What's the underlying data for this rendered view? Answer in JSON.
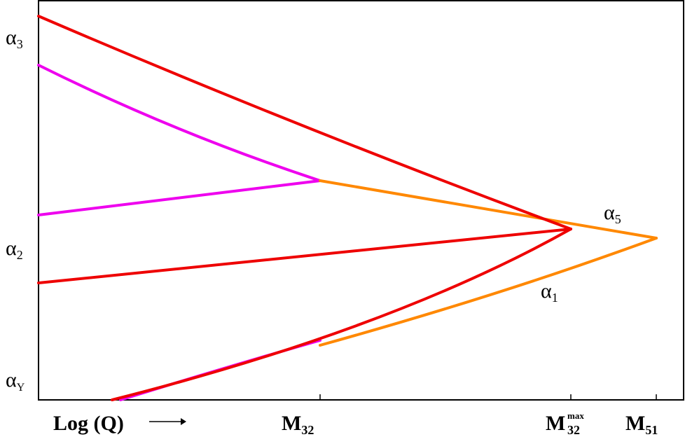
{
  "diagram": {
    "x_axis_label": "Log (Q)",
    "x_axis_arrow": "arrow-right-icon",
    "x_ticks": [
      {
        "base": "M",
        "sub": "32",
        "sup": ""
      },
      {
        "base": "M",
        "sub": "32",
        "sup": "max"
      },
      {
        "base": "M",
        "sub": "51",
        "sup": ""
      }
    ],
    "y_labels": [
      {
        "base": "α",
        "sub": "3"
      },
      {
        "base": "α",
        "sub": "2"
      },
      {
        "base": "α",
        "sub": "Y"
      }
    ],
    "curve_labels": [
      {
        "base": "α",
        "sub": "5"
      },
      {
        "base": "α",
        "sub": "1"
      }
    ],
    "colors": {
      "red": "#ee0000",
      "magenta": "#ee00ee",
      "orange": "#ff8800",
      "axis": "#000000"
    }
  }
}
